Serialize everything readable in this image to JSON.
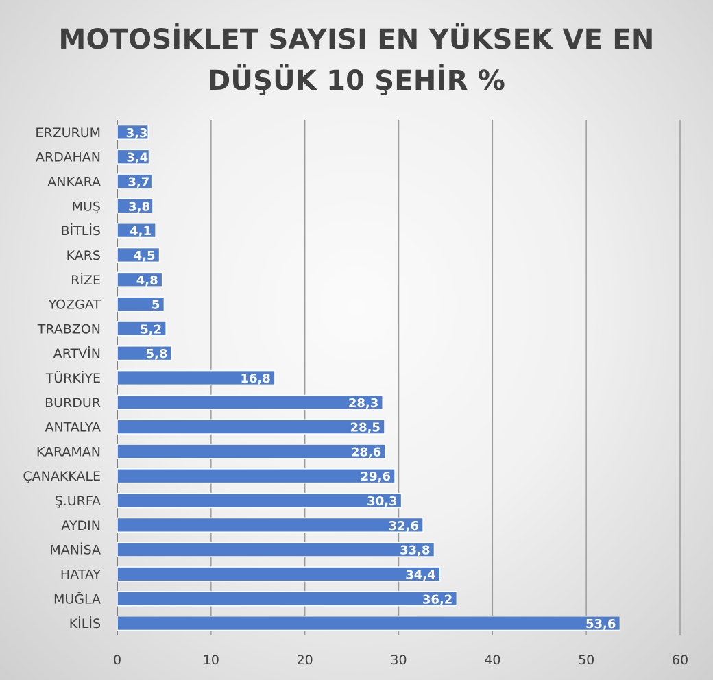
{
  "chart_data": {
    "type": "bar",
    "orientation": "horizontal",
    "title": "MOTOSİKLET SAYISI EN YÜKSEK VE EN\nDÜŞÜK 10 ŞEHİR %",
    "categories": [
      "ERZURUM",
      "ARDAHAN",
      "ANKARA",
      "MUŞ",
      "BİTLİS",
      "KARS",
      "RİZE",
      "YOZGAT",
      "TRABZON",
      "ARTVİN",
      "TÜRKİYE",
      "BURDUR",
      "ANTALYA",
      "KARAMAN",
      "ÇANAKKALE",
      "Ş.URFA",
      "AYDIN",
      "MANİSA",
      "HATAY",
      "MUĞLA",
      "KİLİS"
    ],
    "values": [
      3.3,
      3.4,
      3.7,
      3.8,
      4.1,
      4.5,
      4.8,
      5,
      5.2,
      5.8,
      16.8,
      28.3,
      28.5,
      28.6,
      29.6,
      30.3,
      32.6,
      33.8,
      34.4,
      36.2,
      53.6
    ],
    "data_labels": [
      "3,3",
      "3,4",
      "3,7",
      "3,8",
      "4,1",
      "4,5",
      "4,8",
      "5",
      "5,2",
      "5,8",
      "16,8",
      "28,3",
      "28,5",
      "28,6",
      "29,6",
      "30,3",
      "32,6",
      "33,8",
      "34,4",
      "36,2",
      "53,6"
    ],
    "x_ticks": [
      "0",
      "10",
      "20",
      "30",
      "40",
      "50",
      "60"
    ],
    "xlim": [
      0,
      60
    ],
    "xlabel": "",
    "ylabel": "",
    "grid": "vertical",
    "legend": "none",
    "bar_color": "#4f7ccb",
    "grid_color": "#9c9c9c"
  }
}
